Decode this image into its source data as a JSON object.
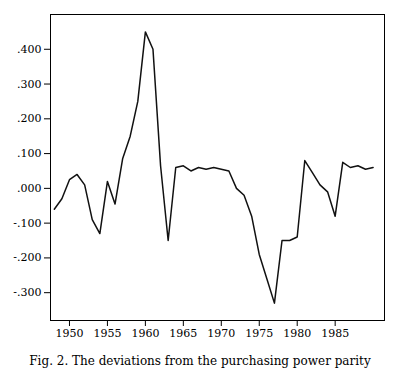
{
  "chart_data": {
    "type": "line",
    "title": "Fig. 2.  The deviations from the purchasing power parity",
    "x": [
      1948,
      1949,
      1950,
      1951,
      1952,
      1953,
      1954,
      1955,
      1956,
      1957,
      1958,
      1959,
      1960,
      1961,
      1962,
      1963,
      1964,
      1965,
      1966,
      1967,
      1968,
      1969,
      1970,
      1971,
      1972,
      1973,
      1974,
      1975,
      1976,
      1977,
      1978,
      1979,
      1980,
      1981,
      1982,
      1983,
      1984,
      1985,
      1986,
      1987,
      1988,
      1989,
      1990
    ],
    "values": [
      -0.06,
      -0.03,
      0.025,
      0.04,
      0.01,
      -0.09,
      -0.13,
      0.02,
      -0.045,
      0.085,
      0.15,
      0.25,
      0.45,
      0.4,
      0.065,
      -0.15,
      0.06,
      0.065,
      0.05,
      0.06,
      0.055,
      0.06,
      0.055,
      0.05,
      0.0,
      -0.02,
      -0.08,
      -0.19,
      -0.26,
      -0.33,
      -0.15,
      -0.15,
      -0.14,
      0.08,
      0.045,
      0.01,
      -0.01,
      -0.08,
      0.075,
      0.06,
      0.065,
      0.055,
      0.06
    ],
    "color": "#111111",
    "xlim": [
      1947.5,
      1991.5
    ],
    "xticks": [
      1950,
      1955,
      1960,
      1965,
      1970,
      1975,
      1980,
      1985
    ],
    "ylim": [
      -0.38,
      0.5
    ],
    "yticks": [
      {
        "value": 0.4,
        "label": ".400"
      },
      {
        "value": 0.3,
        "label": ".300"
      },
      {
        "value": 0.2,
        "label": ".200"
      },
      {
        "value": 0.1,
        "label": ".100"
      },
      {
        "value": 0.0,
        "label": ".000"
      },
      {
        "value": -0.1,
        "label": "-.100"
      },
      {
        "value": -0.2,
        "label": "-.200"
      },
      {
        "value": -0.3,
        "label": "-.300"
      }
    ],
    "grid": false
  }
}
